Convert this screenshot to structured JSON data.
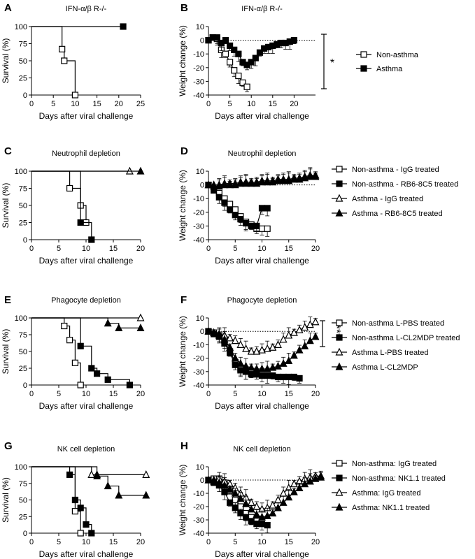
{
  "chart_data": [
    {
      "panel": "A",
      "type": "line",
      "step": true,
      "title": "IFN-α/β R-/-",
      "xlabel": "Days after viral challenge",
      "ylabel": "Survival (%)",
      "xlim": [
        0,
        25
      ],
      "ylim": [
        0,
        100
      ],
      "xticks": [
        0,
        5,
        10,
        15,
        20,
        25
      ],
      "yticks": [
        0,
        25,
        50,
        75,
        100
      ],
      "series": [
        {
          "name": "Non-asthma",
          "marker": "square-open",
          "x": [
            0,
            7,
            7.5,
            10
          ],
          "values": [
            100,
            67,
            50,
            0
          ]
        },
        {
          "name": "Asthma",
          "marker": "square-filled",
          "x": [
            0,
            21
          ],
          "values": [
            100,
            100
          ]
        }
      ],
      "significance": "**"
    },
    {
      "panel": "B",
      "type": "line",
      "title": "IFN-α/β R-/-",
      "xlabel": "Days after viral challenge",
      "ylabel": "Weight change (%)",
      "xlim": [
        0,
        25
      ],
      "ylim": [
        -40,
        10
      ],
      "xticks": [
        0,
        5,
        10,
        15,
        20
      ],
      "yticks": [
        -40,
        -30,
        -20,
        -10,
        0,
        10
      ],
      "series": [
        {
          "name": "Non-asthma",
          "marker": "square-open",
          "x": [
            0,
            1,
            2,
            3,
            4,
            5,
            6,
            7,
            8,
            9
          ],
          "values": [
            0,
            2,
            1,
            -7,
            -10,
            -16,
            -22,
            -26,
            -31,
            -34
          ]
        },
        {
          "name": "Asthma",
          "marker": "square-filled",
          "x": [
            0,
            1,
            2,
            3,
            4,
            5,
            6,
            7,
            8,
            9,
            10,
            11,
            12,
            13,
            14,
            15,
            16,
            17,
            18,
            19,
            20
          ],
          "values": [
            0,
            2,
            2,
            -2,
            0,
            -4,
            -7,
            -10,
            -16,
            -18,
            -16,
            -13,
            -9,
            -6,
            -5,
            -4,
            -3,
            -2,
            -2,
            -1,
            0
          ]
        }
      ],
      "legend": [
        "Non-asthma",
        "Asthma"
      ],
      "significance": "*"
    },
    {
      "panel": "C",
      "type": "line",
      "step": true,
      "title": "Neutrophil depletion",
      "xlabel": "Days after viral challenge",
      "ylabel": "Survival (%)",
      "xlim": [
        0,
        20
      ],
      "ylim": [
        0,
        100
      ],
      "xticks": [
        0,
        5,
        10,
        15,
        20
      ],
      "yticks": [
        0,
        25,
        50,
        75,
        100
      ],
      "series": [
        {
          "name": "Non-asthma - IgG treated",
          "marker": "square-open",
          "x": [
            0,
            7,
            9,
            10
          ],
          "values": [
            100,
            75,
            50,
            25
          ]
        },
        {
          "name": "Non-asthma - RB6-8C5 treated",
          "marker": "square-filled",
          "x": [
            0,
            9,
            11
          ],
          "values": [
            100,
            25,
            0
          ]
        },
        {
          "name": "Asthma - IgG treated",
          "marker": "triangle-open",
          "x": [
            0,
            18
          ],
          "values": [
            100,
            100
          ]
        },
        {
          "name": "Asthma - RB6-8C5 treated",
          "marker": "triangle-filled",
          "x": [
            0,
            20
          ],
          "values": [
            100,
            100
          ]
        }
      ]
    },
    {
      "panel": "D",
      "type": "line",
      "title": "Neutrophil depletion",
      "xlabel": "Days after viral challenge",
      "ylabel": "Weight change (%)",
      "xlim": [
        0,
        20
      ],
      "ylim": [
        -40,
        10
      ],
      "xticks": [
        0,
        5,
        10,
        15,
        20
      ],
      "yticks": [
        -40,
        -30,
        -20,
        -10,
        0,
        10
      ],
      "series": [
        {
          "name": "Non-asthma - IgG treated",
          "marker": "square-open",
          "x": [
            0,
            1,
            2,
            3,
            4,
            5,
            6,
            7,
            8,
            9,
            10,
            11
          ],
          "values": [
            0,
            -3,
            -6,
            -10,
            -14,
            -18,
            -23,
            -27,
            -29,
            -32,
            -32,
            -32
          ]
        },
        {
          "name": "Non-asthma - RB6-8C5 treated",
          "marker": "square-filled",
          "x": [
            0,
            1,
            2,
            3,
            4,
            5,
            6,
            7,
            8,
            9,
            10,
            11
          ],
          "values": [
            0,
            -4,
            -9,
            -13,
            -18,
            -22,
            -25,
            -28,
            -30,
            -30,
            -17,
            -17
          ]
        },
        {
          "name": "Asthma - IgG treated",
          "marker": "triangle-open",
          "x": [
            0,
            1,
            2,
            3,
            4,
            5,
            6,
            7,
            8,
            9,
            10,
            11,
            12,
            13,
            14,
            15,
            16,
            17,
            18,
            19,
            20
          ],
          "values": [
            0,
            0,
            0,
            1,
            1,
            1,
            2,
            2,
            2,
            2,
            3,
            3,
            3,
            4,
            4,
            4,
            5,
            5,
            6,
            7,
            7
          ]
        },
        {
          "name": "Asthma - RB6-8C5 treated",
          "marker": "triangle-filled",
          "x": [
            0,
            1,
            2,
            3,
            4,
            5,
            6,
            7,
            8,
            9,
            10,
            11,
            12,
            13,
            14,
            15,
            16,
            17,
            18,
            19,
            20
          ],
          "values": [
            0,
            -1,
            -1,
            0,
            0,
            0,
            1,
            1,
            1,
            1,
            2,
            2,
            2,
            3,
            3,
            3,
            4,
            4,
            5,
            6,
            6
          ]
        }
      ],
      "legend": [
        "Non-asthma - IgG treated",
        "Non-asthma - RB6-8C5 treated",
        "Asthma - IgG treated",
        "Asthma - RB6-8C5 treated"
      ]
    },
    {
      "panel": "E",
      "type": "line",
      "step": true,
      "title": "Phagocyte depletion",
      "xlabel": "Days after viral challenge",
      "ylabel": "Survival (%)",
      "xlim": [
        0,
        20
      ],
      "ylim": [
        0,
        100
      ],
      "xticks": [
        0,
        5,
        10,
        15,
        20
      ],
      "yticks": [
        0,
        25,
        50,
        75,
        100
      ],
      "series": [
        {
          "name": "Non-asthma L-PBS treated",
          "marker": "square-open",
          "x": [
            0,
            6,
            7,
            8,
            9
          ],
          "values": [
            100,
            88,
            67,
            33,
            0
          ]
        },
        {
          "name": "Non-asthma L-CL2MDP treated",
          "marker": "square-filled",
          "x": [
            0,
            9,
            11,
            12,
            14,
            18
          ],
          "values": [
            100,
            58,
            25,
            17,
            8,
            0
          ]
        },
        {
          "name": "Asthma L-PBS treated",
          "marker": "triangle-open",
          "x": [
            0,
            20
          ],
          "values": [
            100,
            100
          ]
        },
        {
          "name": "Asthma L-CL2MDP",
          "marker": "triangle-filled",
          "x": [
            0,
            14,
            16,
            20
          ],
          "values": [
            100,
            92,
            85,
            85
          ]
        }
      ]
    },
    {
      "panel": "F",
      "type": "line",
      "title": "Phagocyte depletion",
      "xlabel": "Days after viral challenge",
      "ylabel": "Weight change (%)",
      "xlim": [
        0,
        20
      ],
      "ylim": [
        -40,
        10
      ],
      "xticks": [
        0,
        5,
        10,
        15,
        20
      ],
      "yticks": [
        -40,
        -30,
        -20,
        -10,
        0,
        10
      ],
      "series": [
        {
          "name": "Non-asthma L-PBS treated",
          "marker": "square-open",
          "x": [
            0,
            1,
            2,
            3,
            4,
            5,
            6,
            7,
            8,
            9
          ],
          "values": [
            0,
            -1,
            -3,
            -7,
            -15,
            -23,
            -28,
            -30,
            -31,
            -32
          ]
        },
        {
          "name": "Non-asthma L-CL2MDP treated",
          "marker": "square-filled",
          "x": [
            0,
            1,
            2,
            3,
            4,
            5,
            6,
            7,
            8,
            9,
            10,
            11,
            12,
            13,
            14,
            15,
            16,
            17
          ],
          "values": [
            0,
            -2,
            -4,
            -9,
            -16,
            -25,
            -29,
            -30,
            -32,
            -32,
            -33,
            -33,
            -33,
            -34,
            -34,
            -34,
            -34,
            -35
          ]
        },
        {
          "name": "Asthma L-PBS treated",
          "marker": "triangle-open",
          "x": [
            0,
            1,
            2,
            3,
            4,
            5,
            6,
            7,
            8,
            9,
            10,
            11,
            12,
            13,
            14,
            15,
            16,
            17,
            18,
            19,
            20
          ],
          "values": [
            0,
            -1,
            -2,
            -3,
            -5,
            -7,
            -10,
            -13,
            -15,
            -15,
            -14,
            -13,
            -12,
            -10,
            -6,
            -3,
            -1,
            1,
            3,
            5,
            7
          ]
        },
        {
          "name": "Asthma L-CL2MDP",
          "marker": "triangle-filled",
          "x": [
            0,
            1,
            2,
            3,
            4,
            5,
            6,
            7,
            8,
            9,
            10,
            11,
            12,
            13,
            14,
            15,
            16,
            17,
            18,
            19,
            20
          ],
          "values": [
            0,
            -1,
            -3,
            -6,
            -12,
            -20,
            -24,
            -26,
            -27,
            -28,
            -28,
            -28,
            -27,
            -26,
            -24,
            -22,
            -18,
            -14,
            -11,
            -7,
            -4
          ]
        }
      ],
      "legend": [
        "Non-asthma L-PBS treated",
        "Non-asthma L-CL2MDP treated",
        "Asthma L-PBS treated",
        "Asthma L-CL2MDP"
      ],
      "significance": "***"
    },
    {
      "panel": "G",
      "type": "line",
      "step": true,
      "title": "NK cell depletion",
      "xlabel": "Days after viral challenge",
      "ylabel": "Survival (%)",
      "xlim": [
        0,
        20
      ],
      "ylim": [
        0,
        100
      ],
      "xticks": [
        0,
        5,
        10,
        15,
        20
      ],
      "yticks": [
        0,
        25,
        50,
        75,
        100
      ],
      "series": [
        {
          "name": "Non-asthma: IgG treated",
          "marker": "square-open",
          "x": [
            0,
            8,
            9
          ],
          "values": [
            100,
            33,
            0
          ]
        },
        {
          "name": "Non-asthma: NK1.1 treated",
          "marker": "square-filled",
          "x": [
            0,
            7,
            8,
            9,
            10,
            11
          ],
          "values": [
            100,
            88,
            50,
            38,
            13,
            0
          ]
        },
        {
          "name": "Asthma: IgG treated",
          "marker": "triangle-open",
          "x": [
            0,
            11,
            12,
            21
          ],
          "values": [
            100,
            88,
            88,
            88
          ]
        },
        {
          "name": "Asthma: NK1.1 treated",
          "marker": "triangle-filled",
          "x": [
            0,
            12,
            14,
            16,
            21
          ],
          "values": [
            100,
            86,
            71,
            57,
            57
          ]
        }
      ]
    },
    {
      "panel": "H",
      "type": "line",
      "title": "NK cell depletion",
      "xlabel": "Days after viral challenge",
      "ylabel": "Weight change (%)",
      "xlim": [
        0,
        20
      ],
      "ylim": [
        -40,
        10
      ],
      "xticks": [
        0,
        5,
        10,
        15,
        20
      ],
      "yticks": [
        -40,
        -30,
        -20,
        -10,
        0,
        10
      ],
      "series": [
        {
          "name": "Non-asthma: IgG treated",
          "marker": "square-open",
          "x": [
            0,
            1,
            2,
            3,
            4,
            5,
            6,
            7,
            8,
            9
          ],
          "values": [
            0,
            1,
            1,
            -2,
            -8,
            -15,
            -20,
            -25,
            -28,
            -31
          ]
        },
        {
          "name": "Non-asthma: NK1.1 treated",
          "marker": "square-filled",
          "x": [
            0,
            1,
            2,
            3,
            4,
            5,
            6,
            7,
            8,
            9,
            10,
            11
          ],
          "values": [
            0,
            -2,
            -4,
            -9,
            -17,
            -21,
            -25,
            -28,
            -31,
            -33,
            -33,
            -34
          ]
        },
        {
          "name": "Asthma: IgG treated",
          "marker": "triangle-open",
          "x": [
            0,
            1,
            2,
            3,
            4,
            5,
            6,
            7,
            8,
            9,
            10,
            11,
            12,
            13,
            14,
            15,
            16,
            17,
            18,
            19,
            20,
            21
          ],
          "values": [
            0,
            0,
            1,
            -1,
            -3,
            -6,
            -10,
            -13,
            -17,
            -20,
            -22,
            -21,
            -19,
            -15,
            -10,
            -6,
            -3,
            -1,
            1,
            2,
            3,
            3
          ]
        },
        {
          "name": "Asthma: NK1.1 treated",
          "marker": "triangle-filled",
          "x": [
            0,
            1,
            2,
            3,
            4,
            5,
            6,
            7,
            8,
            9,
            10,
            11,
            12,
            13,
            14,
            15,
            16,
            17,
            18,
            19,
            20,
            21
          ],
          "values": [
            0,
            -1,
            -2,
            -4,
            -7,
            -10,
            -14,
            -18,
            -22,
            -26,
            -28,
            -27,
            -25,
            -21,
            -17,
            -13,
            -9,
            -6,
            -3,
            -1,
            1,
            2
          ]
        }
      ],
      "legend": [
        "Non-asthma: IgG treated",
        "Non-asthma: NK1.1 treated",
        "Asthma: IgG treated",
        "Asthma: NK1.1 treated"
      ]
    }
  ]
}
